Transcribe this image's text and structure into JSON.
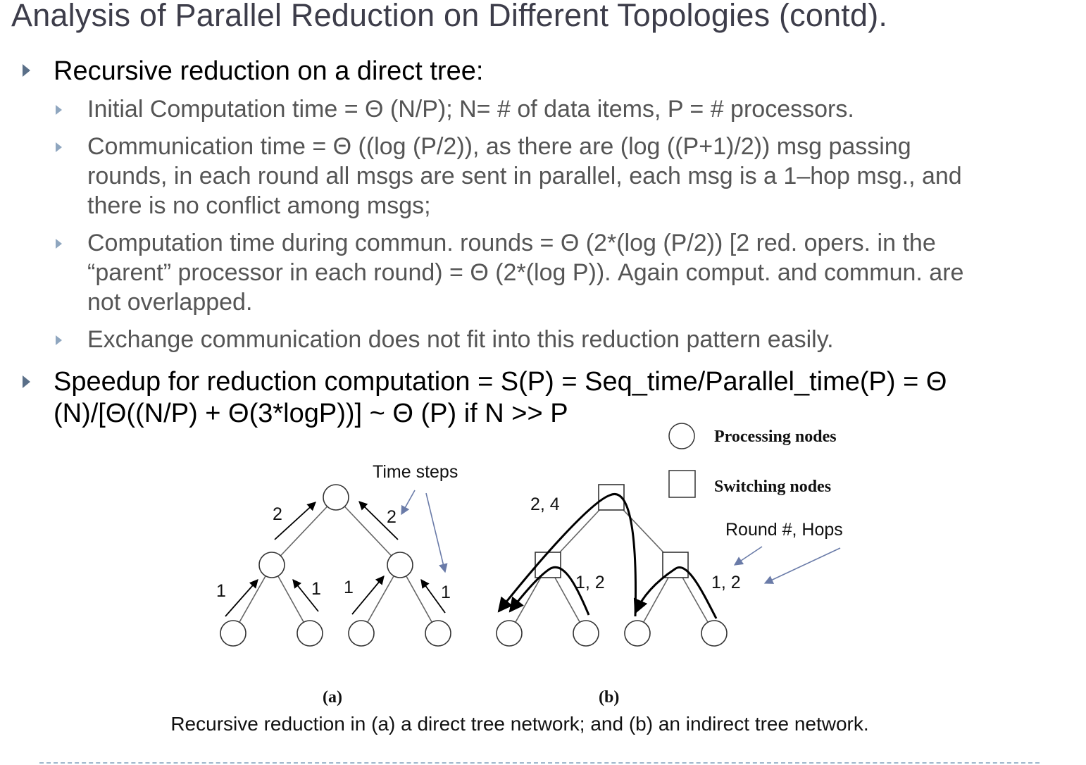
{
  "title": "Analysis of Parallel Reduction on Different Topologies (contd).",
  "bullets": {
    "b1": "Recursive reduction on a direct tree:",
    "s1": "Initial Computation time = Θ (N/P); N= # of data items, P = # processors.",
    "s2": [
      "Communication time = Θ ((log (P/2)), as there are (log ((P+1)/2)) msg passing",
      "rounds, in each round all msgs are sent in parallel, each msg is a 1–hop msg., and",
      "there is no conflict among msgs;"
    ],
    "s3": [
      "Computation time during commun. rounds = Θ (2*(log (P/2)) [2 red. opers. in the",
      "“parent” processor in each round) = Θ (2*(log P)). Again comput. and commun. are",
      "not overlapped."
    ],
    "s4": "Exchange communication does not fit into this reduction pattern easily.",
    "b2": [
      "Speedup for reduction computation = S(P) = Seq_time/Parallel_time(P) = Θ",
      "(N)/[Θ((N/P) + Θ(3*logP))] ~ Θ (P) if N >> P"
    ]
  },
  "figure": {
    "legend_processing": "Processing nodes",
    "legend_switching": "Switching nodes",
    "time_steps": "Time steps",
    "round_hops": "Round #, Hops",
    "a_labels": {
      "top_left": "2",
      "top_right": "2",
      "l1": "1",
      "l2": "1",
      "l3": "1",
      "l4": "1"
    },
    "b_labels": {
      "top": "2, 4",
      "left": "1, 2",
      "right": "1, 2"
    },
    "label_a": "(a)",
    "label_b": "(b)"
  },
  "caption": "Recursive reduction in (a) a direct tree network; and (b) an indirect tree network."
}
